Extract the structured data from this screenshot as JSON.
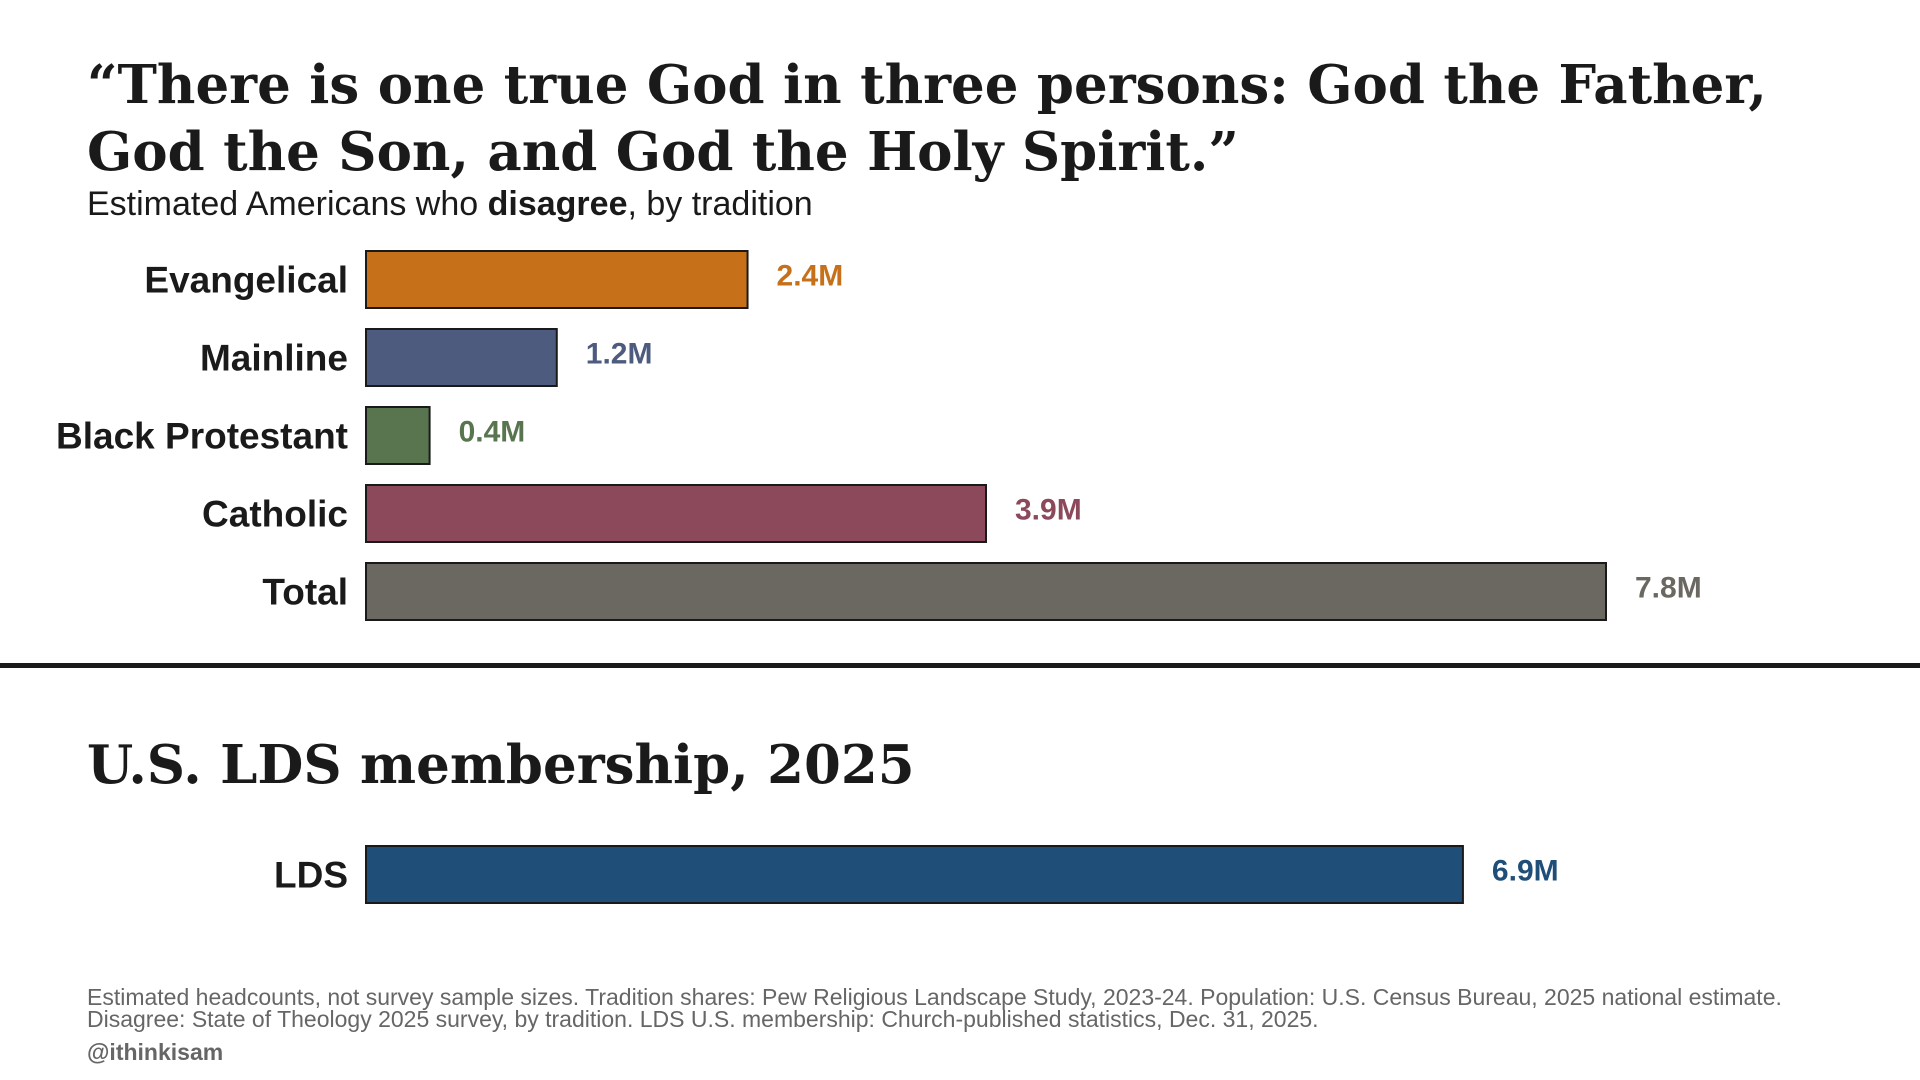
{
  "chart_data": [
    {
      "type": "bar",
      "orientation": "horizontal",
      "title": "“There is one true God in three persons: God the Father, God the Son, and God the Holy Spirit.”",
      "subtitle_prefix": "Estimated Americans who ",
      "subtitle_bold": "disagree",
      "subtitle_suffix": ", by tradition",
      "categories": [
        "Evangelical",
        "Mainline",
        "Black Protestant",
        "Catholic",
        "Total"
      ],
      "values": [
        2.4,
        1.2,
        0.4,
        3.9,
        7.8
      ],
      "value_labels": [
        "2.4M",
        "1.2M",
        "0.4M",
        "3.9M",
        "7.8M"
      ],
      "colors": [
        "#c6701a",
        "#4d5b7f",
        "#587550",
        "#8c495b",
        "#6b6761"
      ],
      "xlim": [
        0,
        7.8
      ],
      "grid": false
    },
    {
      "type": "bar",
      "orientation": "horizontal",
      "title": "U.S. LDS membership, 2025",
      "categories": [
        "LDS"
      ],
      "values": [
        6.9
      ],
      "value_labels": [
        "6.9M"
      ],
      "colors": [
        "#1f4e79"
      ],
      "xlim": [
        0,
        7.8
      ],
      "grid": false
    }
  ],
  "footnote": "Estimated headcounts, not survey sample sizes. Tradition shares: Pew Religious Landscape Study, 2023-24. Population: U.S. Census Bureau, 2025 national estimate. Disagree: State of Theology 2025 survey, by tradition. LDS U.S. membership: Church-published statistics, Dec. 31, 2025.",
  "handle": "@ithinkisam"
}
